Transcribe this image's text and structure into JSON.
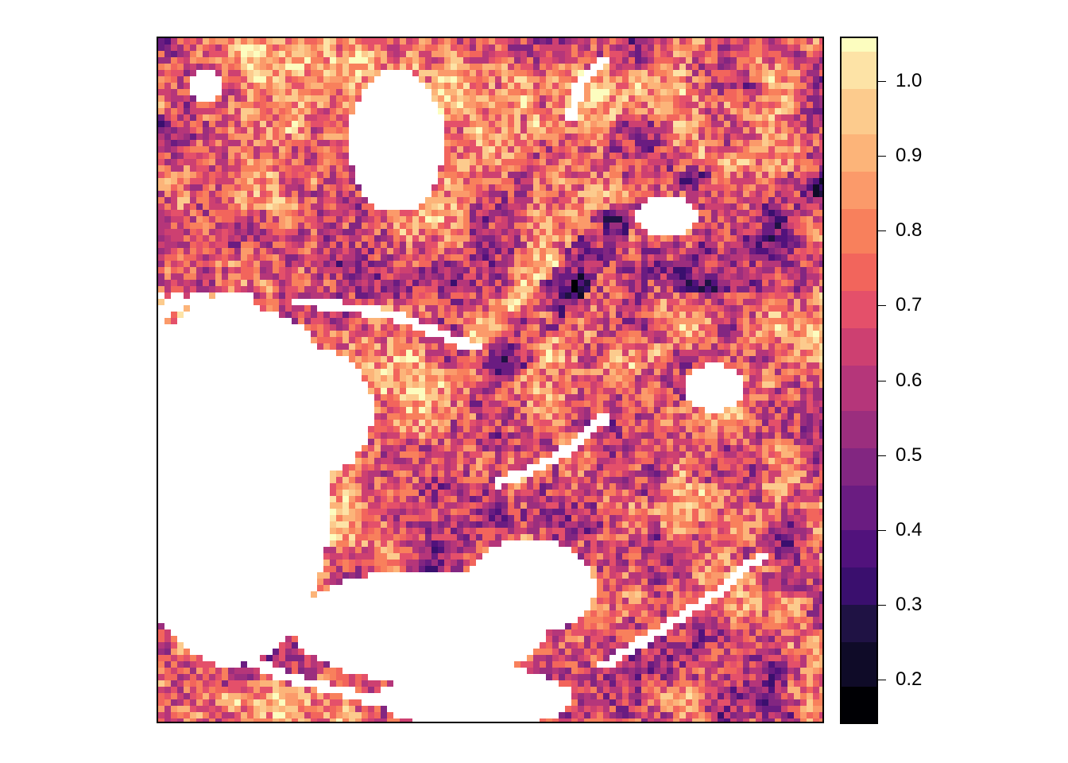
{
  "map": {
    "background": "#ffffff",
    "nodata_color": "#ffffff"
  },
  "legend": {
    "min": 0.14,
    "max": 1.06,
    "breaks": [
      0.14,
      0.19,
      0.25,
      0.3,
      0.35,
      0.4,
      0.46,
      0.51,
      0.56,
      0.62,
      0.67,
      0.72,
      0.77,
      0.83,
      0.88,
      0.93,
      0.99,
      1.04,
      1.06
    ],
    "colors": [
      "#000004",
      "#0f0b28",
      "#1f1244",
      "#3a0f6e",
      "#51127c",
      "#6a1c81",
      "#822681",
      "#9b2e7e",
      "#b5367a",
      "#cd4071",
      "#e4506a",
      "#f2655c",
      "#f8805c",
      "#fb9a6a",
      "#fcb479",
      "#fccb8d",
      "#fde3a6",
      "#fcfdbf"
    ],
    "ticks": [
      {
        "value": 0.2,
        "label": "0.2"
      },
      {
        "value": 0.3,
        "label": "0.3"
      },
      {
        "value": 0.4,
        "label": "0.4"
      },
      {
        "value": 0.5,
        "label": "0.5"
      },
      {
        "value": 0.6,
        "label": "0.6"
      },
      {
        "value": 0.7,
        "label": "0.7"
      },
      {
        "value": 0.8,
        "label": "0.8"
      },
      {
        "value": 0.9,
        "label": "0.9"
      },
      {
        "value": 1.0,
        "label": "1.0"
      }
    ]
  }
}
